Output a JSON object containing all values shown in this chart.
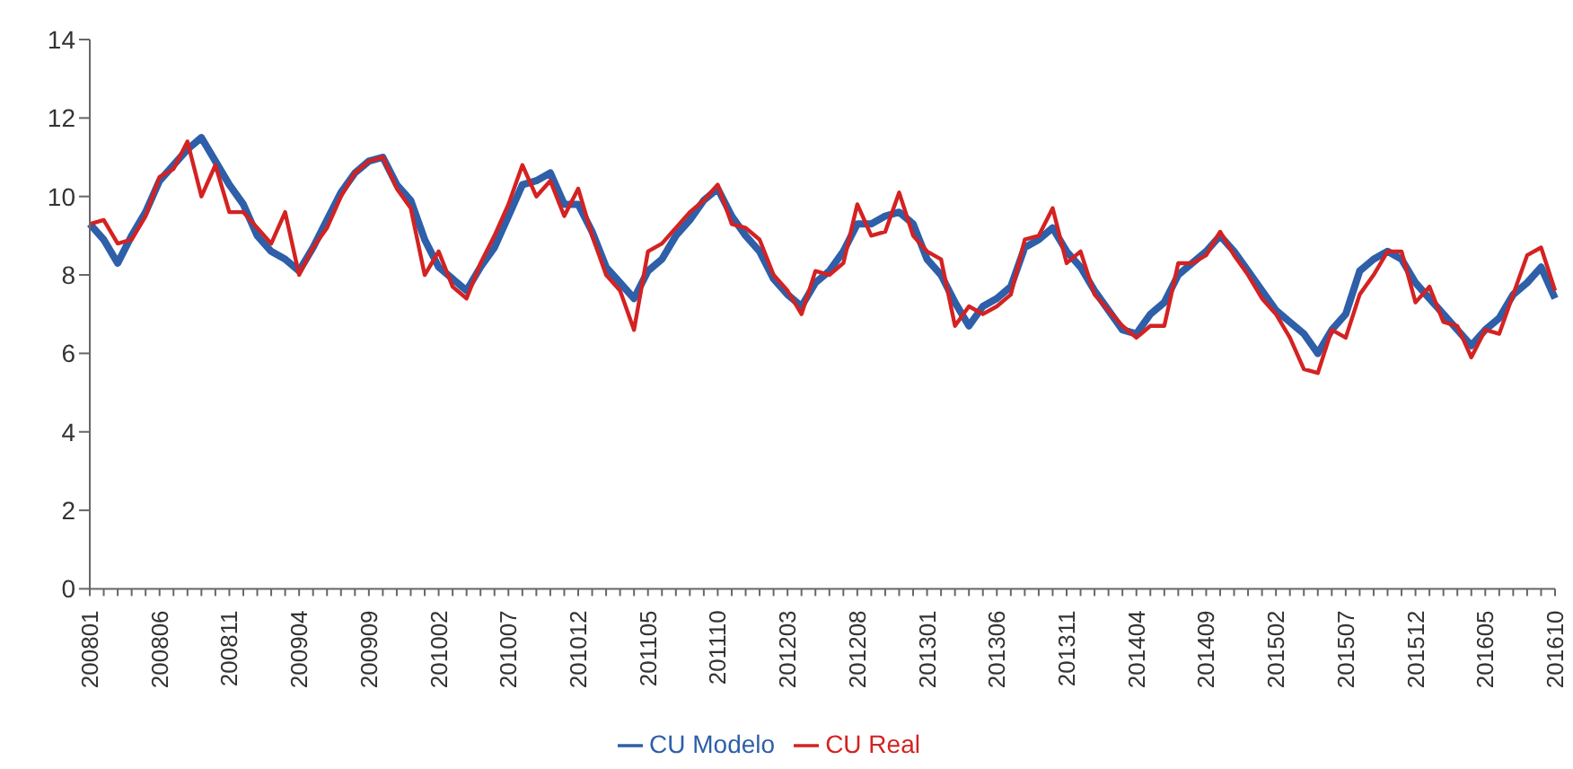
{
  "chart_data": {
    "type": "line",
    "categories": [
      "200801",
      null,
      null,
      null,
      null,
      "200806",
      null,
      null,
      null,
      null,
      "200811",
      null,
      null,
      null,
      null,
      "200904",
      null,
      null,
      null,
      null,
      "200909",
      null,
      null,
      null,
      null,
      "201002",
      null,
      null,
      null,
      null,
      "201007",
      null,
      null,
      null,
      null,
      "201012",
      null,
      null,
      null,
      null,
      "201105",
      null,
      null,
      null,
      null,
      "201110",
      null,
      null,
      null,
      null,
      "201203",
      null,
      null,
      null,
      null,
      "201208",
      null,
      null,
      null,
      null,
      "201301",
      null,
      null,
      null,
      null,
      "201306",
      null,
      null,
      null,
      null,
      "201311",
      null,
      null,
      null,
      null,
      "201404",
      null,
      null,
      null,
      null,
      "201409",
      null,
      null,
      null,
      null,
      "201502",
      null,
      null,
      null,
      null,
      "201507",
      null,
      null,
      null,
      null,
      "201512",
      null,
      null,
      null,
      null,
      "201605",
      null,
      null,
      null,
      null,
      "201610"
    ],
    "series": [
      {
        "name": "CU Modelo",
        "color": "#2e5fa8",
        "values": [
          9.3,
          8.9,
          8.3,
          9.0,
          9.6,
          10.4,
          10.8,
          11.2,
          11.5,
          10.9,
          10.3,
          9.8,
          9.0,
          8.6,
          8.4,
          8.1,
          8.7,
          9.4,
          10.1,
          10.6,
          10.9,
          11.0,
          10.3,
          9.9,
          8.9,
          8.2,
          7.9,
          7.6,
          8.2,
          8.7,
          9.5,
          10.3,
          10.4,
          10.6,
          9.8,
          9.8,
          9.1,
          8.2,
          7.8,
          7.4,
          8.1,
          8.4,
          9.0,
          9.4,
          9.9,
          10.2,
          9.5,
          9.0,
          8.6,
          7.9,
          7.5,
          7.2,
          7.8,
          8.1,
          8.6,
          9.3,
          9.3,
          9.5,
          9.6,
          9.3,
          8.4,
          8.0,
          7.3,
          6.7,
          7.2,
          7.4,
          7.7,
          8.7,
          8.9,
          9.2,
          8.6,
          8.2,
          7.6,
          7.1,
          6.6,
          6.5,
          7.0,
          7.3,
          8.0,
          8.3,
          8.6,
          9.0,
          8.6,
          8.1,
          7.6,
          7.1,
          6.8,
          6.5,
          6.0,
          6.6,
          7.0,
          8.1,
          8.4,
          8.6,
          8.4,
          7.8,
          7.4,
          7.0,
          6.6,
          6.2,
          6.6,
          6.9,
          7.5,
          7.8,
          8.2,
          7.4
        ]
      },
      {
        "name": "CU Real",
        "color": "#d42222",
        "values": [
          9.3,
          9.4,
          8.8,
          8.9,
          9.5,
          10.5,
          10.7,
          11.4,
          10.0,
          10.8,
          9.6,
          9.6,
          9.2,
          8.8,
          9.6,
          8.0,
          8.7,
          9.2,
          10.0,
          10.6,
          10.9,
          11.0,
          10.2,
          9.7,
          8.0,
          8.6,
          7.7,
          7.4,
          8.3,
          9.0,
          9.8,
          10.8,
          10.0,
          10.4,
          9.5,
          10.2,
          9.0,
          8.0,
          7.6,
          6.6,
          8.6,
          8.8,
          9.2,
          9.6,
          9.9,
          10.3,
          9.3,
          9.2,
          8.9,
          8.0,
          7.6,
          7.0,
          8.1,
          8.0,
          8.3,
          9.8,
          9.0,
          9.1,
          10.1,
          9.0,
          8.6,
          8.4,
          6.7,
          7.2,
          7.0,
          7.2,
          7.5,
          8.9,
          9.0,
          9.7,
          8.3,
          8.6,
          7.5,
          7.1,
          6.7,
          6.4,
          6.7,
          6.7,
          8.3,
          8.3,
          8.5,
          9.1,
          8.5,
          8.0,
          7.4,
          7.0,
          6.4,
          5.6,
          5.5,
          6.6,
          6.4,
          7.5,
          8.0,
          8.6,
          8.6,
          7.3,
          7.7,
          6.8,
          6.7,
          5.9,
          6.6,
          6.5,
          7.5,
          8.5,
          8.7,
          7.6
        ]
      }
    ],
    "ylim": [
      0,
      14
    ],
    "yticks": [
      0,
      2,
      4,
      6,
      8,
      10,
      12,
      14
    ],
    "legend": "bottom",
    "marker": "none"
  }
}
